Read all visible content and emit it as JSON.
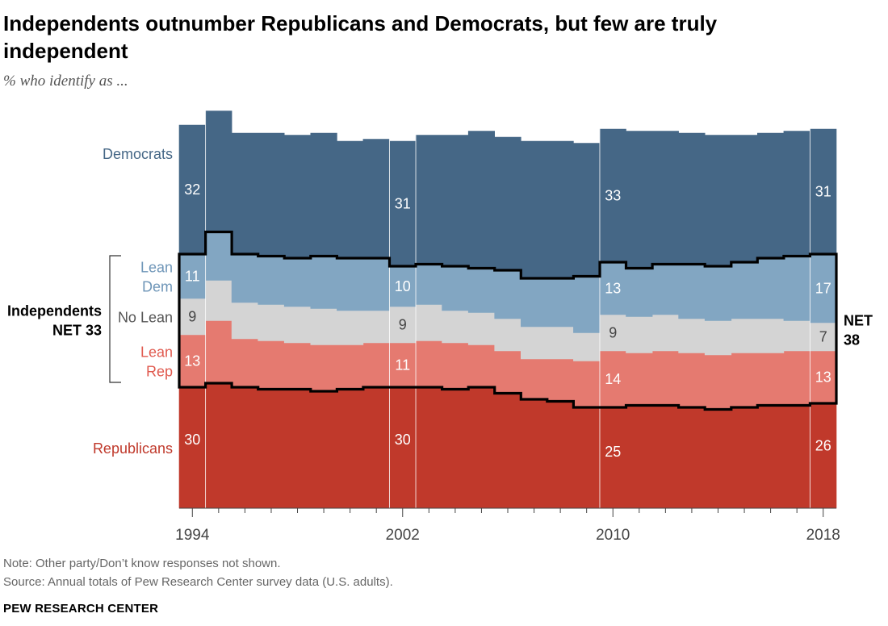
{
  "title": "Independents outnumber Republicans and Democrats, but few are truly independent",
  "subtitle": "% who identify as ...",
  "note": "Note: Other party/Don’t know responses not shown.",
  "source": "Source: Annual totals of Pew Research Center survey data (U.S. adults).",
  "brand": "PEW RESEARCH CENTER",
  "colors": {
    "republicans": "#c0392b",
    "lean_rep": "#e57a70",
    "no_lean": "#d4d4d4",
    "lean_dem": "#82a6c2",
    "democrats": "#456786"
  },
  "chart_data": {
    "type": "area",
    "x": [
      1994,
      1995,
      1996,
      1997,
      1998,
      1999,
      2000,
      2001,
      2002,
      2003,
      2004,
      2005,
      2006,
      2007,
      2008,
      2009,
      2010,
      2011,
      2012,
      2013,
      2014,
      2015,
      2016,
      2017,
      2018
    ],
    "x_ticks": [
      "1994",
      "2002",
      "2010",
      "2018"
    ],
    "stack_order": [
      "Republicans",
      "Lean Rep",
      "No Lean",
      "Lean Dem",
      "Democrats"
    ],
    "series": [
      {
        "name": "Republicans",
        "key": "republicans",
        "values": [
          30,
          31,
          30,
          29.5,
          29.5,
          29,
          29.5,
          30,
          30,
          30,
          29.5,
          30,
          28.5,
          27,
          26.5,
          25,
          25,
          25.5,
          25.5,
          25,
          24.5,
          25,
          25.5,
          25.5,
          26
        ],
        "labels": {
          "1994": "30",
          "2002": "30",
          "2010": "25",
          "2018": "26"
        },
        "label_y": [
          30,
          30,
          24,
          27
        ]
      },
      {
        "name": "Lean Rep",
        "key": "lean_rep",
        "values": [
          13,
          15.5,
          12,
          12,
          11.5,
          11.5,
          11,
          11,
          11,
          11.5,
          11.5,
          10.5,
          10.5,
          10,
          10.5,
          11.5,
          14,
          13,
          13.5,
          13.5,
          13.5,
          13.5,
          13,
          13.5,
          13
        ],
        "labels": {
          "1994": "13",
          "2002": "11",
          "2010": "14",
          "2018": "13"
        }
      },
      {
        "name": "No Lean",
        "key": "no_lean",
        "values": [
          9,
          10,
          9,
          9,
          9,
          9,
          8.5,
          8,
          9,
          9,
          8,
          8,
          8,
          8,
          8,
          7,
          9,
          9,
          9,
          8.5,
          8.5,
          8.5,
          8.5,
          7.5,
          7
        ],
        "labels": {
          "1994": "9",
          "2002": "9",
          "2010": "9",
          "2018": "7"
        }
      },
      {
        "name": "Lean Dem",
        "key": "lean_dem",
        "values": [
          11,
          12,
          12,
          12,
          12,
          13,
          13,
          13,
          10,
          10,
          11,
          11,
          12,
          12,
          12,
          14,
          13,
          12,
          12.5,
          13.5,
          13.5,
          14,
          15,
          16,
          17
        ],
        "labels": {
          "1994": "11",
          "2002": "10",
          "2010": "13",
          "2018": "17"
        }
      },
      {
        "name": "Democrats",
        "key": "democrats",
        "values": [
          32,
          30,
          30,
          30.5,
          30.5,
          30.5,
          29,
          29.5,
          31,
          32,
          32.5,
          34,
          33,
          34,
          34,
          33,
          33,
          34,
          33,
          32.5,
          32.5,
          31.5,
          31,
          31,
          31
        ],
        "labels": {
          "1994": "32",
          "2002": "31",
          "2010": "33",
          "2018": "31"
        },
        "label_y": [
          32,
          30,
          33,
          31
        ]
      }
    ],
    "net": [
      {
        "year": "1994",
        "label_top": "Independents",
        "label_bottom": "NET 33"
      },
      {
        "year": "2018",
        "label_top": "NET",
        "label_bottom": "38"
      }
    ],
    "row_labels": {
      "democrats": [
        "Democrats"
      ],
      "lean_dem": [
        "Lean",
        "Dem"
      ],
      "no_lean": [
        "No Lean"
      ],
      "lean_rep": [
        "Lean",
        "Rep"
      ],
      "republicans": [
        "Republicans"
      ]
    },
    "ylim": [
      0,
      100
    ],
    "grid": false,
    "legend": "inline-left"
  }
}
